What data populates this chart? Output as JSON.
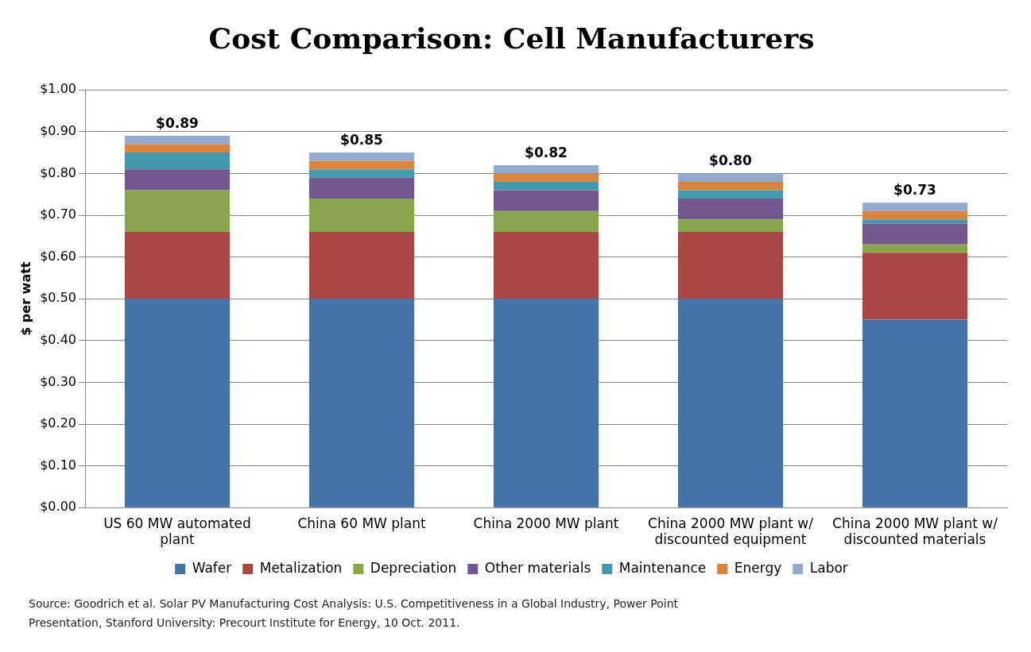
{
  "chart_data": {
    "type": "bar",
    "title": "Cost Comparison: Cell Manufacturers",
    "ylabel": "$ per watt",
    "categories": [
      "US 60 MW automated plant",
      "China 60 MW plant",
      "China 2000 MW plant",
      "China 2000 MW plant w/ discounted equipment",
      "China 2000 MW plant w/ discounted materials"
    ],
    "stacked": true,
    "series": [
      {
        "name": "Wafer",
        "color": "#4572a7",
        "values": [
          0.5,
          0.5,
          0.5,
          0.5,
          0.45
        ]
      },
      {
        "name": "Metalization",
        "color": "#aa4643",
        "values": [
          0.16,
          0.16,
          0.16,
          0.16,
          0.16
        ]
      },
      {
        "name": "Depreciation",
        "color": "#89a54e",
        "values": [
          0.1,
          0.08,
          0.05,
          0.03,
          0.02
        ]
      },
      {
        "name": "Other materials",
        "color": "#71588f",
        "values": [
          0.05,
          0.05,
          0.05,
          0.05,
          0.05
        ]
      },
      {
        "name": "Maintenance",
        "color": "#4198af",
        "values": [
          0.04,
          0.02,
          0.02,
          0.02,
          0.01
        ]
      },
      {
        "name": "Energy",
        "color": "#db843d",
        "values": [
          0.02,
          0.02,
          0.02,
          0.02,
          0.02
        ]
      },
      {
        "name": "Labor",
        "color": "#93a9cf",
        "values": [
          0.02,
          0.02,
          0.02,
          0.02,
          0.02
        ]
      }
    ],
    "totals": [
      "$0.89",
      "$0.85",
      "$0.82",
      "$0.80",
      "$0.73"
    ],
    "ylim": [
      0,
      1
    ],
    "yticks": [
      {
        "value": 0,
        "label": "$0.00"
      },
      {
        "value": 0.1,
        "label": "$0.10"
      },
      {
        "value": 0.2,
        "label": "$0.20"
      },
      {
        "value": 0.3,
        "label": "$0.30"
      },
      {
        "value": 0.4,
        "label": "$0.40"
      },
      {
        "value": 0.5,
        "label": "$0.50"
      },
      {
        "value": 0.6,
        "label": "$0.60"
      },
      {
        "value": 0.7,
        "label": "$0.70"
      },
      {
        "value": 0.8,
        "label": "$0.80"
      },
      {
        "value": 0.9,
        "label": "$0.90"
      },
      {
        "value": 1,
        "label": "$1.00"
      }
    ],
    "grid": "y",
    "legend": "bottom",
    "annotations": [
      "Source: Goodrich et al. Solar PV Manufacturing Cost Analysis: U.S. Competitiveness in a Global Industry, Power Point Presentation, Stanford University: Precourt Institute for Energy, 10 Oct. 2011."
    ]
  }
}
